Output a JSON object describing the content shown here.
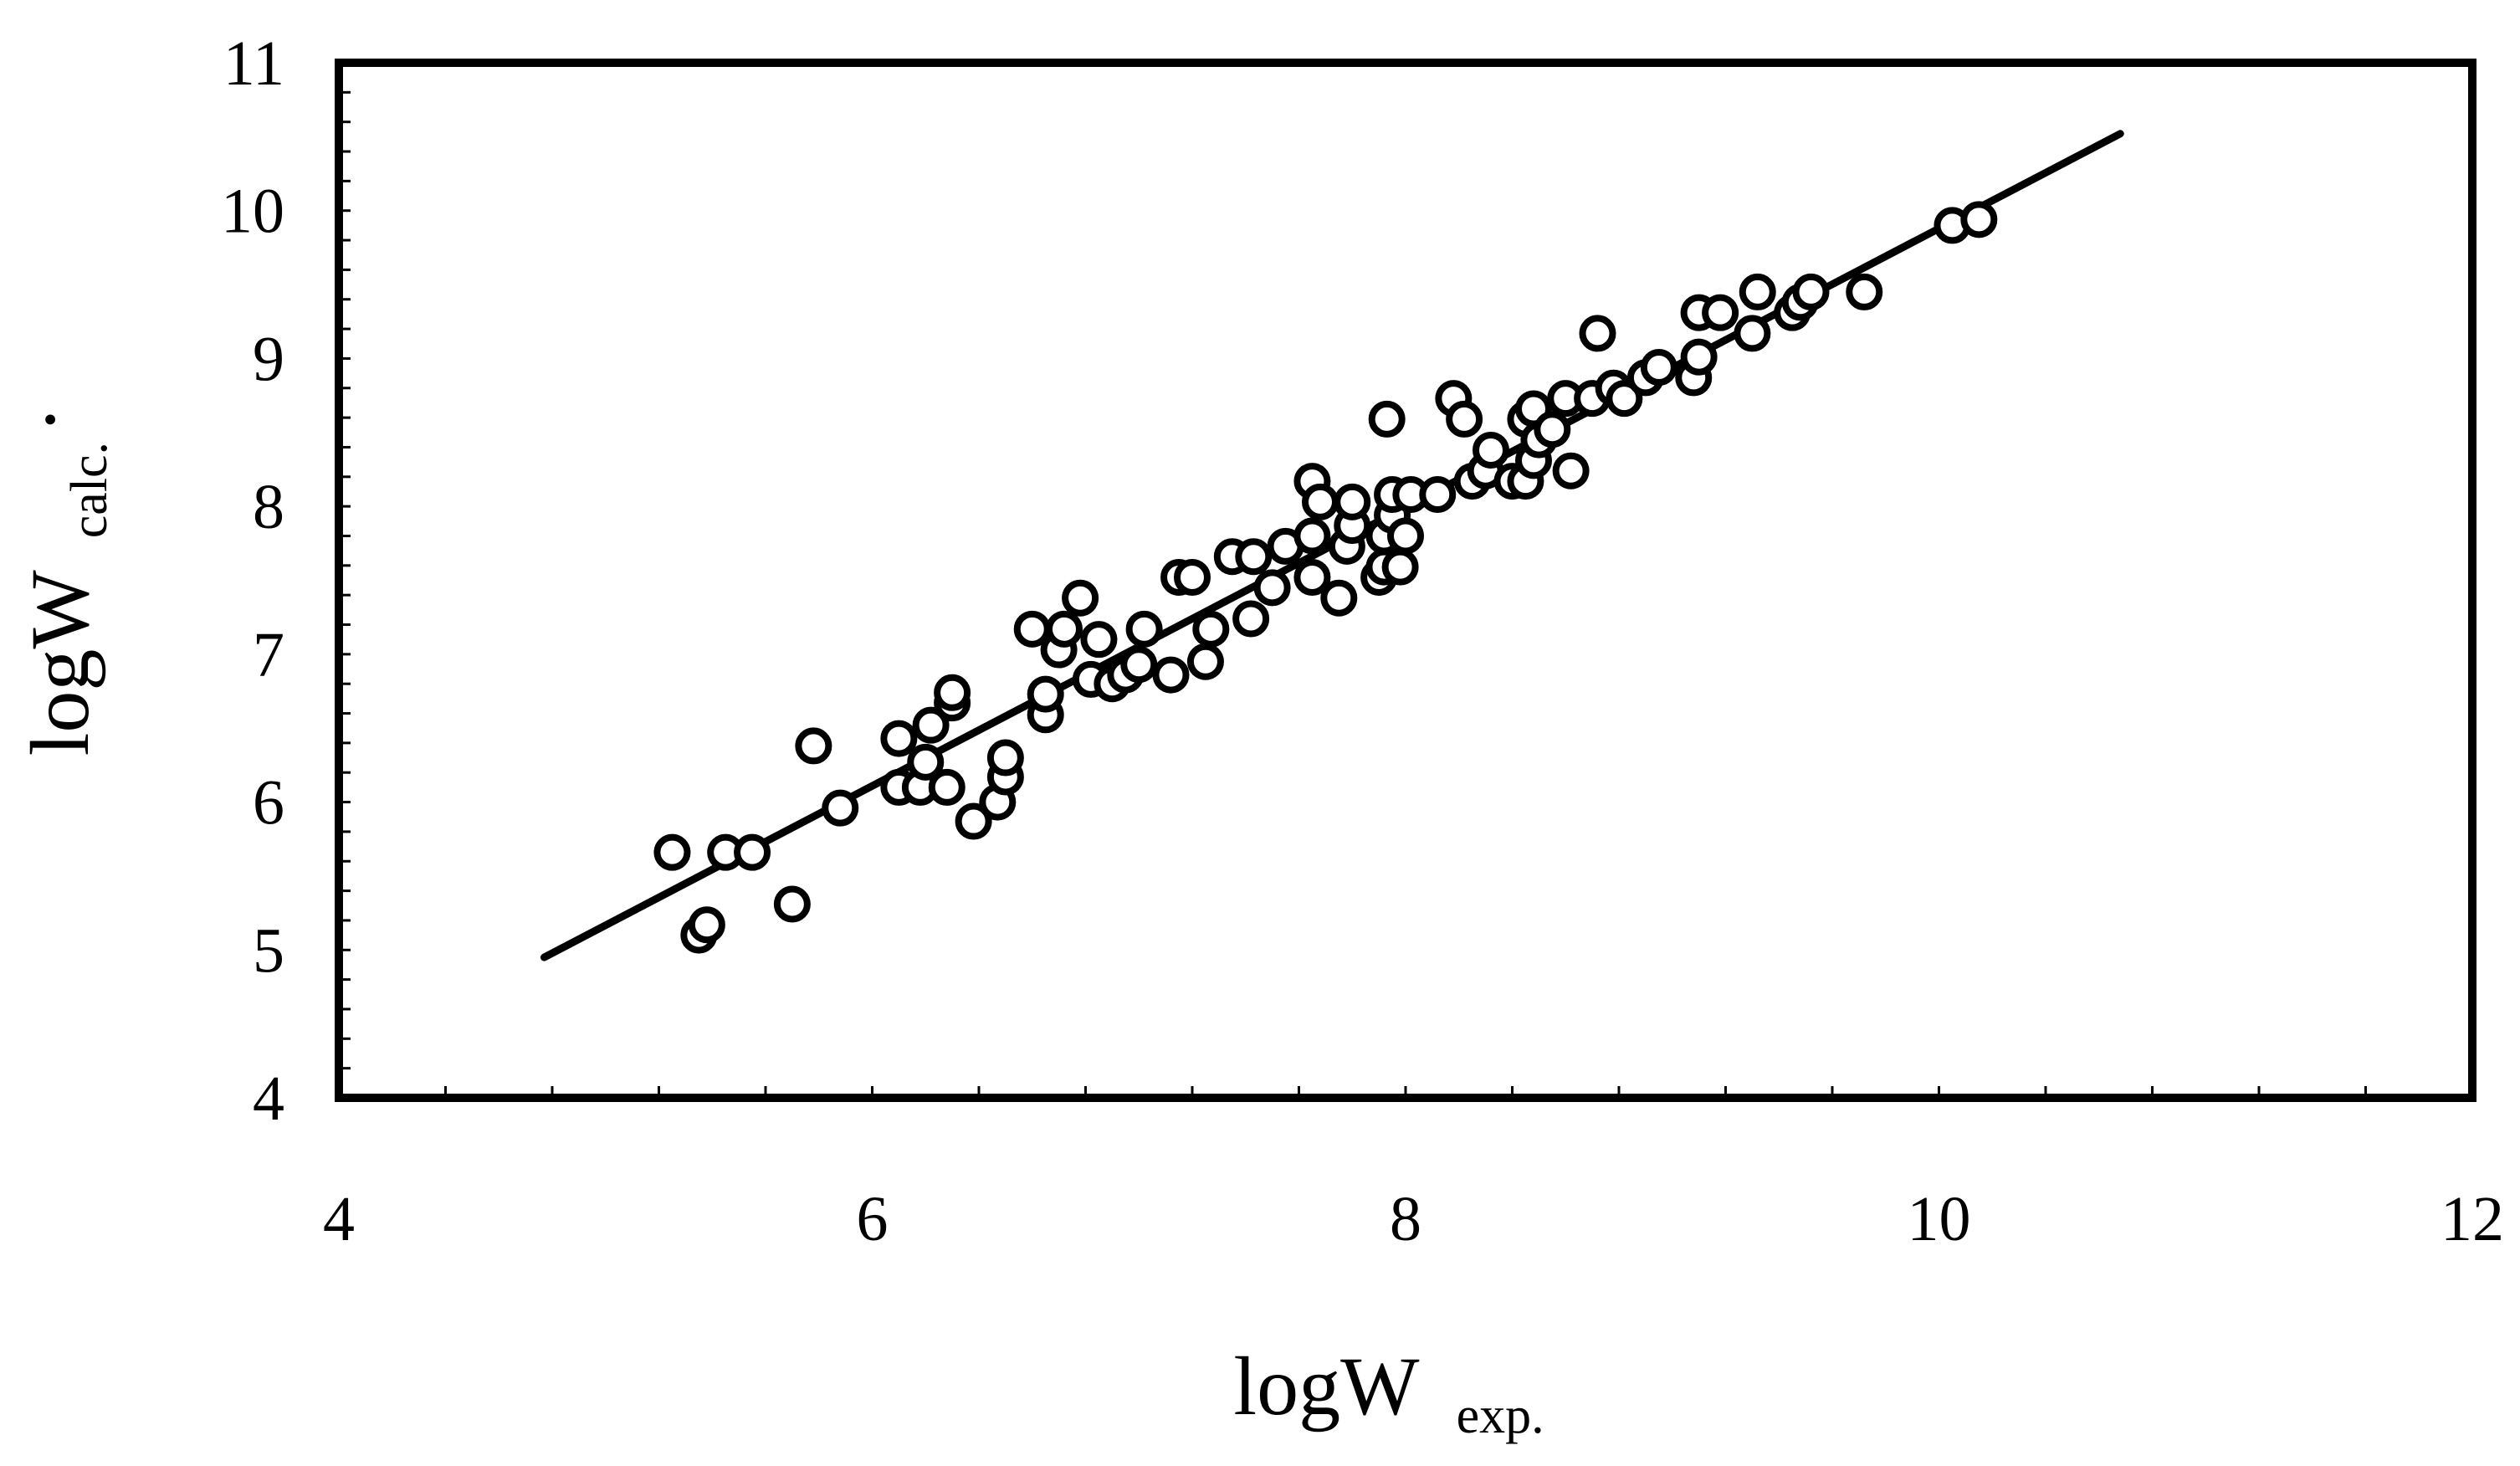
{
  "chart_data": {
    "type": "scatter",
    "title": "",
    "xlabel": {
      "main": "logW",
      "sub": "exp."
    },
    "ylabel": {
      "main": "logW",
      "sub": "calc.",
      "dot": "·"
    },
    "xlim": [
      4,
      12
    ],
    "ylim": [
      4,
      11
    ],
    "x_ticks": [
      4,
      6,
      8,
      10,
      12
    ],
    "y_ticks": [
      4,
      5,
      6,
      7,
      8,
      9,
      10,
      11
    ],
    "x_minor_step": 0.4,
    "y_minor_step": 0.2,
    "grid": false,
    "legend": "none",
    "marker": "open-circle",
    "line_color": "#000000",
    "fit_line": {
      "x": [
        4.77,
        10.68
      ],
      "y": [
        4.95,
        10.52
      ]
    },
    "series": [
      {
        "values": [
          [
            5.25,
            5.66
          ],
          [
            5.35,
            5.1
          ],
          [
            5.38,
            5.17
          ],
          [
            5.45,
            5.66
          ],
          [
            5.55,
            5.66
          ],
          [
            5.7,
            5.31
          ],
          [
            5.78,
            6.38
          ],
          [
            5.88,
            5.96
          ],
          [
            6.1,
            6.1
          ],
          [
            6.1,
            6.43
          ],
          [
            6.18,
            6.1
          ],
          [
            6.2,
            6.27
          ],
          [
            6.22,
            6.52
          ],
          [
            6.28,
            6.1
          ],
          [
            6.3,
            6.67
          ],
          [
            6.3,
            6.74
          ],
          [
            6.38,
            5.87
          ],
          [
            6.47,
            6.0
          ],
          [
            6.5,
            6.17
          ],
          [
            6.5,
            6.3
          ],
          [
            6.6,
            7.17
          ],
          [
            6.65,
            6.59
          ],
          [
            6.65,
            6.73
          ],
          [
            6.7,
            7.03
          ],
          [
            6.72,
            7.17
          ],
          [
            6.78,
            7.38
          ],
          [
            6.82,
            6.83
          ],
          [
            6.85,
            7.1
          ],
          [
            6.9,
            6.8
          ],
          [
            6.95,
            6.86
          ],
          [
            7.0,
            6.93
          ],
          [
            7.02,
            7.17
          ],
          [
            7.12,
            6.86
          ],
          [
            7.15,
            7.52
          ],
          [
            7.2,
            7.52
          ],
          [
            7.25,
            6.95
          ],
          [
            7.27,
            7.17
          ],
          [
            7.35,
            7.66
          ],
          [
            7.42,
            7.24
          ],
          [
            7.43,
            7.66
          ],
          [
            7.5,
            7.45
          ],
          [
            7.55,
            7.73
          ],
          [
            7.65,
            7.52
          ],
          [
            7.65,
            7.8
          ],
          [
            7.65,
            8.17
          ],
          [
            7.68,
            8.03
          ],
          [
            7.75,
            7.38
          ],
          [
            7.78,
            7.73
          ],
          [
            7.8,
            7.87
          ],
          [
            7.8,
            8.03
          ],
          [
            7.9,
            7.52
          ],
          [
            7.92,
            7.59
          ],
          [
            7.92,
            7.8
          ],
          [
            7.93,
            8.59
          ],
          [
            7.95,
            7.94
          ],
          [
            7.95,
            8.08
          ],
          [
            7.98,
            7.59
          ],
          [
            8.0,
            7.8
          ],
          [
            8.02,
            8.08
          ],
          [
            8.12,
            8.08
          ],
          [
            8.18,
            8.73
          ],
          [
            8.22,
            8.59
          ],
          [
            8.25,
            8.17
          ],
          [
            8.3,
            8.24
          ],
          [
            8.32,
            8.38
          ],
          [
            8.4,
            8.17
          ],
          [
            8.45,
            8.59
          ],
          [
            8.45,
            8.17
          ],
          [
            8.48,
            8.66
          ],
          [
            8.48,
            8.31
          ],
          [
            8.5,
            8.45
          ],
          [
            8.55,
            8.52
          ],
          [
            8.6,
            8.73
          ],
          [
            8.62,
            8.24
          ],
          [
            8.7,
            8.73
          ],
          [
            8.72,
            9.17
          ],
          [
            8.78,
            8.8
          ],
          [
            8.82,
            8.73
          ],
          [
            8.9,
            8.87
          ],
          [
            8.95,
            8.94
          ],
          [
            9.08,
            8.87
          ],
          [
            9.1,
            9.01
          ],
          [
            9.1,
            9.31
          ],
          [
            9.18,
            9.31
          ],
          [
            9.3,
            9.17
          ],
          [
            9.32,
            9.45
          ],
          [
            9.45,
            9.31
          ],
          [
            9.48,
            9.38
          ],
          [
            9.52,
            9.45
          ],
          [
            9.72,
            9.45
          ],
          [
            10.05,
            9.9
          ],
          [
            10.15,
            9.94
          ]
        ]
      }
    ]
  }
}
